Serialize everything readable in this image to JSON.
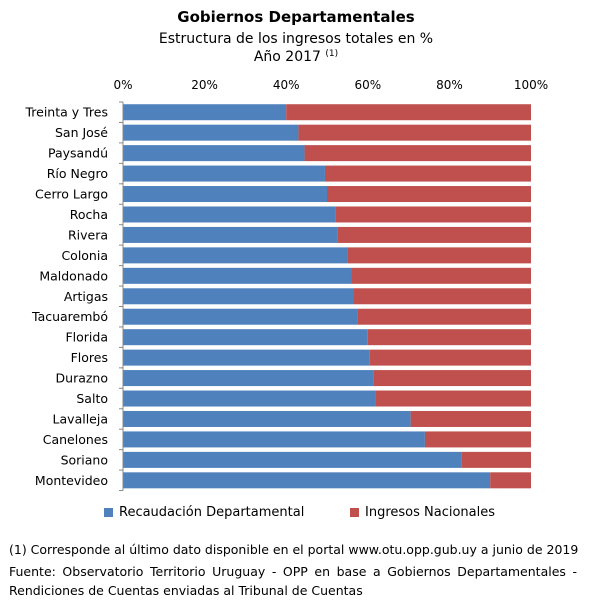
{
  "title": "Gobiernos Departamentales",
  "subtitle": "Estructura de los ingresos totales en %",
  "year_label": "Año 2017",
  "year_note": "(1)",
  "colors": {
    "series1": "#4f81bd",
    "series2": "#c0504d"
  },
  "chart_data": {
    "type": "bar",
    "orientation": "horizontal",
    "stacked": true,
    "axis_position": "top",
    "xlim": [
      0,
      100
    ],
    "xticks": [
      "0%",
      "20%",
      "40%",
      "60%",
      "80%",
      "100%"
    ],
    "categories": [
      "Treinta y Tres",
      "San José",
      "Paysandú",
      "Río Negro",
      "Cerro Largo",
      "Rocha",
      "Rivera",
      "Colonia",
      "Maldonado",
      "Artigas",
      "Tacuarembó",
      "Florida",
      "Flores",
      "Durazno",
      "Salto",
      "Lavalleja",
      "Canelones",
      "Soriano",
      "Montevideo"
    ],
    "series": [
      {
        "name": "Recaudación Departamental",
        "values": [
          40,
          43,
          44.5,
          49.5,
          50,
          52,
          52.5,
          55,
          56,
          56.5,
          57.5,
          60,
          60.5,
          61.5,
          62,
          70.5,
          74,
          83,
          90
        ]
      },
      {
        "name": "Ingresos Nacionales",
        "values": [
          60,
          57,
          55.5,
          50.5,
          50,
          48,
          47.5,
          45,
          44,
          43.5,
          42.5,
          40,
          39.5,
          38.5,
          38,
          29.5,
          26,
          17,
          10
        ]
      }
    ],
    "legend_position": "bottom",
    "grid": false
  },
  "footnotes": {
    "note1": "(1) Corresponde al último dato disponible en el portal www.otu.opp.gub.uy a junio de 2019",
    "source_line1": "Fuente: Observatorio Territorio Uruguay - OPP en base a Gobiernos Departamentales -",
    "source_line2": "Rendiciones de Cuentas enviadas al Tribunal de Cuentas"
  }
}
